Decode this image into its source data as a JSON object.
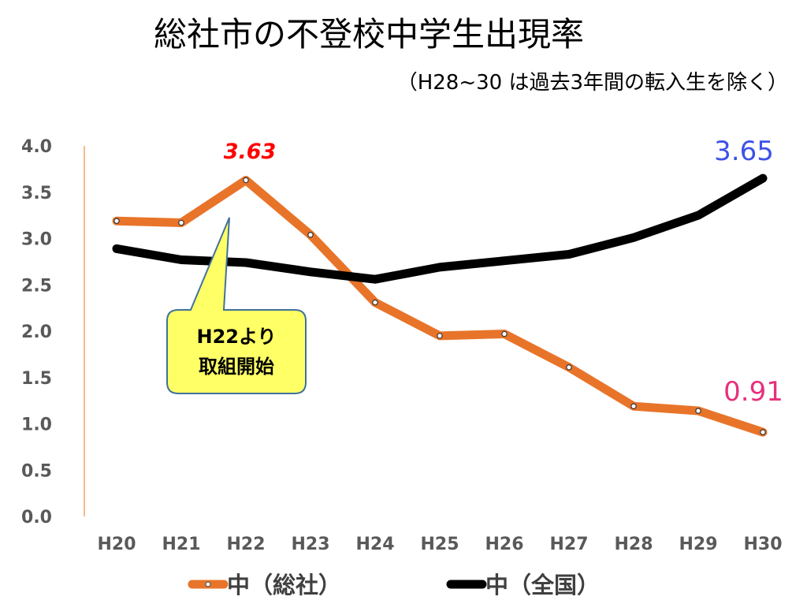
{
  "chart_data": {
    "type": "line",
    "title": "総社市の不登校中学生出現率",
    "subtitle": "（H28~30 は過去3年間の転入生を除く）",
    "categories": [
      "H20",
      "H21",
      "H22",
      "H23",
      "H24",
      "H25",
      "H26",
      "H27",
      "H28",
      "H29",
      "H30"
    ],
    "ylim": [
      0,
      4.0
    ],
    "yticks": [
      "0.0",
      "0.5",
      "1.0",
      "1.5",
      "2.0",
      "2.5",
      "3.0",
      "3.5",
      "4.0"
    ],
    "grid": false,
    "legend_position": "bottom",
    "series": [
      {
        "name": "中（総社）",
        "color": "#e8742a",
        "markers": true,
        "values": [
          3.19,
          3.17,
          3.63,
          3.04,
          2.31,
          1.95,
          1.97,
          1.61,
          1.19,
          1.14,
          0.91
        ]
      },
      {
        "name": "中（全国）",
        "color": "#000000",
        "markers": false,
        "values": [
          2.89,
          2.77,
          2.74,
          2.64,
          2.56,
          2.69,
          2.76,
          2.83,
          3.01,
          3.25,
          3.65
        ]
      }
    ],
    "annotations": [
      {
        "text": "3.63",
        "series": 0,
        "index": 2,
        "color": "#ff0000"
      },
      {
        "text": "3.65",
        "series": 1,
        "index": 10,
        "color": "#3d52e8"
      },
      {
        "text": "0.91",
        "series": 0,
        "index": 10,
        "color": "#e6307c"
      }
    ],
    "callout": {
      "lines": [
        "H22より",
        "取組開始"
      ],
      "fill": "#ffff66",
      "border": "#41719c"
    }
  }
}
